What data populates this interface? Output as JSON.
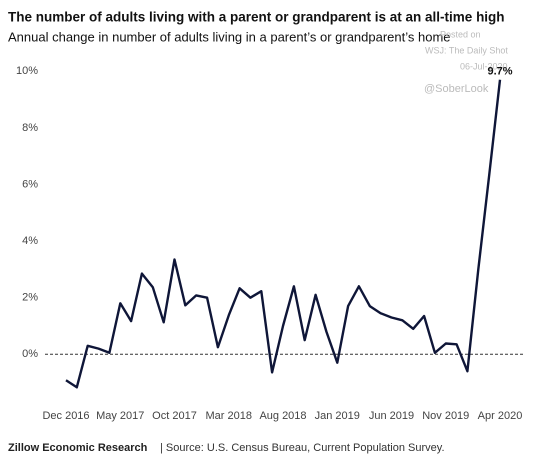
{
  "chart_data": {
    "type": "line",
    "title": "The number of adults living with a parent or grandparent is at an all-time high",
    "subtitle": "Annual change in number of adults living in a parent’s or grandparent’s home",
    "annotations": [
      "Posted on",
      "WSJ: The Daily Shot",
      "06-Jul-2020",
      "@SoberLook"
    ],
    "source_org": "Zillow Economic Research",
    "source": "| Source: U.S. Census Bureau, Current Population Survey.",
    "categories": [
      "Dec 2016",
      null,
      null,
      null,
      null,
      "May 2017",
      null,
      null,
      null,
      null,
      "Oct 2017",
      null,
      null,
      null,
      null,
      "Mar 2018",
      null,
      null,
      null,
      null,
      "Aug 2018",
      null,
      null,
      null,
      null,
      "Jan 2019",
      null,
      null,
      null,
      null,
      "Jun 2019",
      null,
      null,
      null,
      null,
      "Nov 2019",
      null,
      null,
      null,
      null,
      "Apr 2020"
    ],
    "series": [
      {
        "name": "Annual change",
        "color": "#0f1638",
        "values": [
          -0.92,
          -1.17,
          0.3,
          0.2,
          0.05,
          1.8,
          1.17,
          2.85,
          2.37,
          1.13,
          3.35,
          1.73,
          2.08,
          2.0,
          0.25,
          1.38,
          2.33,
          2.0,
          2.23,
          -0.64,
          1.0,
          2.4,
          0.5,
          2.1,
          0.8,
          -0.3,
          1.7,
          2.4,
          1.7,
          1.45,
          1.3,
          1.2,
          0.9,
          1.35,
          0.05,
          0.38,
          0.35,
          -0.6,
          3.0,
          6.3,
          9.7
        ],
        "value_labels": [
          null,
          null,
          null,
          null,
          null,
          null,
          null,
          null,
          null,
          null,
          null,
          null,
          null,
          null,
          null,
          null,
          null,
          null,
          null,
          null,
          null,
          null,
          null,
          null,
          null,
          null,
          null,
          null,
          null,
          null,
          null,
          null,
          null,
          null,
          null,
          null,
          null,
          null,
          null,
          null,
          "9.7%"
        ]
      }
    ],
    "ylim": [
      -1.9,
      10.4
    ],
    "yticks": [
      {
        "value": 0,
        "label": "0%"
      },
      {
        "value": 2,
        "label": "2%"
      },
      {
        "value": 4,
        "label": "4%"
      },
      {
        "value": 6,
        "label": "6%"
      },
      {
        "value": 8,
        "label": "8%"
      },
      {
        "value": 10,
        "label": "10%"
      }
    ],
    "zero_line": true,
    "grid": false
  }
}
